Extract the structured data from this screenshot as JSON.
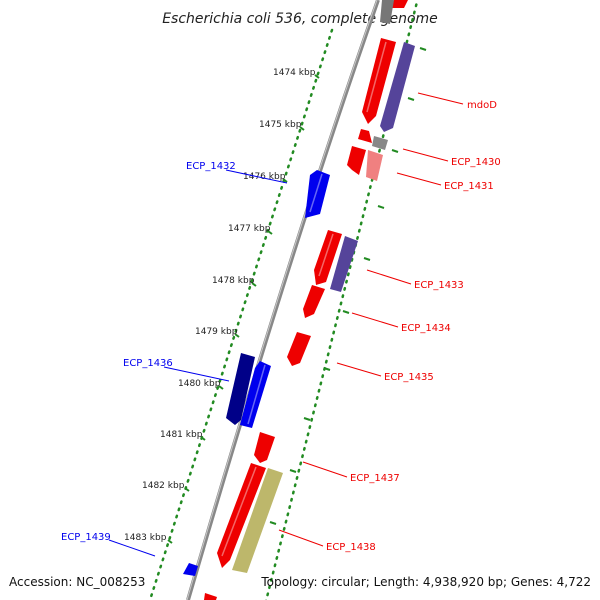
{
  "title": "Escherichia coli 536, complete genome",
  "footer": {
    "accession": "Accession: NC_008253",
    "summary": "Topology: circular; Length: 4,938,920 bp; Genes: 4,722"
  },
  "colors": {
    "forward_cds": "#ee0000",
    "forward_pseudo": "#f08080",
    "reverse_cds": "#0000ee",
    "reverse_dark": "#000088",
    "reverse_mid": "#55449a",
    "rna": "#bdb76b",
    "gray": "#888888",
    "tick": "#228b22"
  },
  "ticks": [
    {
      "kbp": 1474,
      "label": "1474 kbp"
    },
    {
      "kbp": 1475,
      "label": "1475 kbp"
    },
    {
      "kbp": 1476,
      "label": "1476 kbp"
    },
    {
      "kbp": 1477,
      "label": "1477 kbp"
    },
    {
      "kbp": 1478,
      "label": "1478 kbp"
    },
    {
      "kbp": 1479,
      "label": "1479 kbp"
    },
    {
      "kbp": 1480,
      "label": "1480 kbp"
    },
    {
      "kbp": 1481,
      "label": "1481 kbp"
    },
    {
      "kbp": 1482,
      "label": "1482 kbp"
    },
    {
      "kbp": 1483,
      "label": "1483 kbp"
    }
  ],
  "gene_labels": [
    {
      "name": "mdoD",
      "strand": "forward"
    },
    {
      "name": "ECP_1430",
      "strand": "forward"
    },
    {
      "name": "ECP_1431",
      "strand": "forward"
    },
    {
      "name": "ECP_1432",
      "strand": "reverse"
    },
    {
      "name": "ECP_1433",
      "strand": "forward"
    },
    {
      "name": "ECP_1434",
      "strand": "forward"
    },
    {
      "name": "ECP_1435",
      "strand": "forward"
    },
    {
      "name": "ECP_1436",
      "strand": "reverse"
    },
    {
      "name": "ECP_1437",
      "strand": "forward"
    },
    {
      "name": "ECP_1438",
      "strand": "forward"
    },
    {
      "name": "ECP_1439",
      "strand": "reverse"
    }
  ]
}
